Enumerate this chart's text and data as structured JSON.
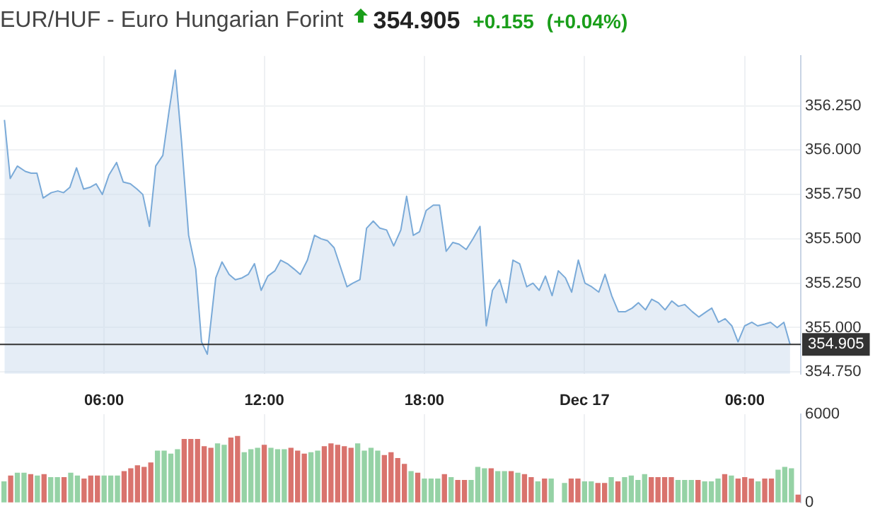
{
  "chart_data": [
    {
      "type": "area",
      "title": "EUR/HUF - Euro Hungarian Forint",
      "annotations": [
        "354.905",
        "+0.155",
        "(+0.04%)"
      ],
      "x": [
        "--12-16T02:16",
        "--12-16T02:29",
        "--12-16T02:45",
        "--12-16T03:03",
        "--12-16T03:16",
        "--12-16T03:29",
        "--12-16T03:43",
        "--12-16T04:01",
        "--12-16T04:16",
        "--12-16T04:29",
        "--12-16T04:43",
        "--12-16T04:58",
        "--12-16T05:14",
        "--12-16T05:28",
        "--12-16T05:42",
        "--12-16T05:56",
        "--12-16T06:11",
        "--12-16T06:28",
        "--12-16T06:43",
        "--12-16T06:59",
        "--12-16T07:14",
        "--12-16T07:27",
        "--12-16T07:42",
        "--12-16T07:56",
        "--12-16T08:12",
        "--12-16T08:26",
        "--12-16T08:40",
        "--12-16T08:54",
        "--12-16T09:10",
        "--12-16T09:26",
        "--12-16T09:39",
        "--12-16T09:52",
        "--12-16T10:11",
        "--12-16T10:25",
        "--12-16T10:41",
        "--12-16T10:55",
        "--12-16T11:10",
        "--12-16T11:24",
        "--12-16T11:38",
        "--12-16T11:53",
        "--12-16T12:08",
        "--12-16T12:24",
        "--12-16T12:37",
        "--12-16T12:52",
        "--12-16T13:07",
        "--12-16T13:21",
        "--12-16T13:37",
        "--12-16T13:53",
        "--12-16T14:08",
        "--12-16T14:22",
        "--12-16T14:37",
        "--12-16T15:06",
        "--12-16T15:19",
        "--12-16T15:35",
        "--12-16T15:50",
        "--12-16T16:05",
        "--12-16T16:20",
        "--12-16T16:35",
        "--12-16T16:51",
        "--12-16T17:07",
        "--12-16T17:20",
        "--12-16T17:35",
        "--12-16T17:49",
        "--12-16T18:04",
        "--12-16T18:20",
        "--12-16T18:34",
        "--12-16T18:49",
        "--12-16T19:04",
        "--12-16T19:18",
        "--12-16T19:34",
        "--12-16T19:49",
        "--12-16T20:05",
        "--12-16T20:19",
        "--12-16T20:33",
        "--12-16T20:49",
        "--12-16T21:04",
        "--12-16T21:19",
        "--12-16T21:34",
        "--12-16T21:50",
        "--12-16T22:04",
        "--12-16T22:18",
        "--12-16T22:32",
        "--12-16T22:47",
        "--12-16T23:01",
        "--12-16T23:17",
        "--12-16T23:31",
        "--12-16T23:46",
        "--12-17T00:01",
        "--12-17T00:16",
        "--12-17T00:32",
        "--12-17T00:46",
        "--12-17T01:01",
        "--12-17T01:16",
        "--12-17T01:32",
        "--12-17T01:47",
        "--12-17T02:01",
        "--12-17T02:17",
        "--12-17T02:31",
        "--12-17T02:46",
        "--12-17T03:01",
        "--12-17T03:16",
        "--12-17T03:31",
        "--12-17T03:45",
        "--12-17T04:02",
        "--12-17T04:17",
        "--12-17T04:34",
        "--12-17T04:46",
        "--12-17T05:01",
        "--12-17T05:16",
        "--12-17T05:31",
        "--12-17T05:45",
        "--12-17T06:00",
        "--12-17T06:16",
        "--12-17T06:29",
        "--12-17T06:45",
        "--12-17T06:58",
        "--12-17T07:13",
        "--12-17T07:28",
        "--12-17T07:42"
      ],
      "values": [
        356.17,
        355.84,
        355.91,
        355.88,
        355.87,
        355.87,
        355.73,
        355.76,
        355.77,
        355.76,
        355.79,
        355.9,
        355.78,
        355.79,
        355.81,
        355.75,
        355.86,
        355.93,
        355.82,
        355.81,
        355.78,
        355.75,
        355.57,
        355.91,
        355.97,
        356.22,
        356.45,
        356.05,
        355.52,
        355.33,
        354.92,
        354.85,
        355.28,
        355.37,
        355.3,
        355.27,
        355.28,
        355.3,
        355.36,
        355.21,
        355.29,
        355.32,
        355.38,
        355.36,
        355.33,
        355.3,
        355.38,
        355.52,
        355.5,
        355.49,
        355.45,
        355.23,
        355.25,
        355.27,
        355.56,
        355.6,
        355.56,
        355.55,
        355.46,
        355.55,
        355.74,
        355.52,
        355.54,
        355.66,
        355.69,
        355.69,
        355.43,
        355.48,
        355.47,
        355.44,
        355.5,
        355.57,
        355.01,
        355.21,
        355.27,
        355.14,
        355.38,
        355.36,
        355.23,
        355.25,
        355.21,
        355.29,
        355.18,
        355.32,
        355.28,
        355.2,
        355.38,
        355.25,
        355.23,
        355.2,
        355.3,
        355.18,
        355.09,
        355.09,
        355.11,
        355.14,
        355.1,
        355.16,
        355.14,
        355.1,
        355.15,
        355.12,
        355.13,
        355.09,
        355.06,
        355.09,
        355.11,
        355.03,
        355.05,
        355.01,
        354.92,
        355.01,
        355.03,
        355.01,
        355.02,
        355.03,
        355.0,
        355.03,
        354.905
      ],
      "color": "#7aaad8",
      "marker": "none",
      "xlim": [
        "--12-16T02:06",
        "--12-17T08:06"
      ],
      "xticks": [
        {
          "value": "--12-16T06:00",
          "label": null
        },
        {
          "value": "--12-16T12:00",
          "label": null
        },
        {
          "value": "--12-16T18:00",
          "label": null
        },
        {
          "value": "--12-17T00:00",
          "label": null
        },
        {
          "value": "--12-17T06:00",
          "label": null
        }
      ],
      "ylim": [
        354.74,
        356.53
      ],
      "yticks": [
        {
          "value": 354.75,
          "label": "354.750"
        },
        {
          "value": 355,
          "label": "355.000"
        },
        {
          "value": 355.25,
          "label": "355.250"
        },
        {
          "value": 355.5,
          "label": "355.500"
        },
        {
          "value": 355.75,
          "label": "355.750"
        },
        {
          "value": 356,
          "label": "356.000"
        },
        {
          "value": 356.25,
          "label": "356.250"
        }
      ],
      "ref_lines": [
        {
          "axis": "y",
          "value": 354.905,
          "label": "354.905",
          "color": "#333333"
        }
      ],
      "grid": true,
      "tick_labels": "y"
    },
    {
      "type": "bar",
      "x": [
        "--12-16T02:15",
        "--12-16T02:30",
        "--12-16T02:45",
        "--12-16T03:00",
        "--12-16T03:15",
        "--12-16T03:30",
        "--12-16T03:45",
        "--12-16T04:00",
        "--12-16T04:15",
        "--12-16T04:30",
        "--12-16T04:45",
        "--12-16T05:00",
        "--12-16T05:15",
        "--12-16T05:30",
        "--12-16T05:45",
        "--12-16T06:00",
        "--12-16T06:15",
        "--12-16T06:30",
        "--12-16T06:45",
        "--12-16T07:00",
        "--12-16T07:15",
        "--12-16T07:30",
        "--12-16T07:45",
        "--12-16T08:00",
        "--12-16T08:15",
        "--12-16T08:30",
        "--12-16T08:45",
        "--12-16T09:00",
        "--12-16T09:15",
        "--12-16T09:30",
        "--12-16T09:45",
        "--12-16T10:00",
        "--12-16T10:15",
        "--12-16T10:30",
        "--12-16T10:45",
        "--12-16T11:00",
        "--12-16T11:15",
        "--12-16T11:30",
        "--12-16T11:45",
        "--12-16T12:00",
        "--12-16T12:15",
        "--12-16T12:30",
        "--12-16T12:45",
        "--12-16T13:00",
        "--12-16T13:15",
        "--12-16T13:30",
        "--12-16T13:45",
        "--12-16T14:00",
        "--12-16T14:15",
        "--12-16T14:30",
        "--12-16T14:45",
        "--12-16T15:00",
        "--12-16T15:15",
        "--12-16T15:30",
        "--12-16T15:45",
        "--12-16T16:00",
        "--12-16T16:15",
        "--12-16T16:30",
        "--12-16T16:45",
        "--12-16T17:00",
        "--12-16T17:15",
        "--12-16T17:30",
        "--12-16T17:45",
        "--12-16T18:00",
        "--12-16T18:15",
        "--12-16T18:30",
        "--12-16T18:45",
        "--12-16T19:00",
        "--12-16T19:15",
        "--12-16T19:30",
        "--12-16T19:45",
        "--12-16T20:00",
        "--12-16T20:15",
        "--12-16T20:30",
        "--12-16T20:45",
        "--12-16T21:00",
        "--12-16T21:15",
        "--12-16T21:30",
        "--12-16T21:45",
        "--12-16T22:00",
        "--12-16T22:15",
        "--12-16T22:30",
        "--12-16T22:45",
        "--12-16T23:00",
        "--12-16T23:15",
        "--12-16T23:30",
        "--12-16T23:45",
        "--12-17T00:00",
        "--12-17T00:15",
        "--12-17T00:30",
        "--12-17T00:45",
        "--12-17T01:00",
        "--12-17T01:15",
        "--12-17T01:30",
        "--12-17T01:45",
        "--12-17T02:00",
        "--12-17T02:15",
        "--12-17T02:30",
        "--12-17T02:45",
        "--12-17T03:00",
        "--12-17T03:15",
        "--12-17T03:30",
        "--12-17T03:45",
        "--12-17T04:00",
        "--12-17T04:15",
        "--12-17T04:30",
        "--12-17T04:45",
        "--12-17T05:00",
        "--12-17T05:15",
        "--12-17T05:30",
        "--12-17T05:45",
        "--12-17T06:00",
        "--12-17T06:15",
        "--12-17T06:30",
        "--12-17T06:45",
        "--12-17T07:00",
        "--12-17T07:15",
        "--12-17T07:30",
        "--12-17T07:45",
        "--12-17T08:00"
      ],
      "values": [
        1400,
        1800,
        2000,
        2000,
        1900,
        1800,
        1900,
        1700,
        1700,
        1700,
        2000,
        1800,
        1600,
        1800,
        1800,
        1800,
        1800,
        1800,
        2100,
        2300,
        2500,
        2400,
        2700,
        3500,
        3500,
        3300,
        3600,
        4300,
        4300,
        4300,
        3800,
        3700,
        4000,
        3900,
        4400,
        4500,
        3400,
        3600,
        3700,
        3900,
        3700,
        3600,
        3600,
        3700,
        3500,
        3300,
        3400,
        3500,
        3800,
        4000,
        3900,
        3800,
        3700,
        4000,
        3500,
        3700,
        3500,
        3200,
        3400,
        3000,
        2600,
        2100,
        2000,
        1600,
        1600,
        1600,
        1900,
        1700,
        1500,
        1500,
        1500,
        2400,
        2300,
        2300,
        2100,
        2100,
        2100,
        2000,
        1900,
        1700,
        1400,
        1600,
        1600,
        null,
        1300,
        1600,
        1600,
        1400,
        1400,
        1300,
        1300,
        1700,
        1400,
        1700,
        1800,
        1500,
        1900,
        1700,
        1700,
        1700,
        1700,
        1500,
        1500,
        1500,
        1500,
        1400,
        1400,
        1600,
        1900,
        1800,
        1600,
        1700,
        1600,
        1400,
        1600,
        1600,
        2200,
        2400,
        2300,
        500
      ],
      "colors": [
        "#95d2a5",
        "#d9736d",
        "#95d2a5",
        "#95d2a5",
        "#d9736d",
        "#95d2a5",
        "#d9736d",
        "#95d2a5",
        "#95d2a5",
        "#d9736d",
        "#95d2a5",
        "#95d2a5",
        "#d9736d",
        "#d9736d",
        "#d9736d",
        "#95d2a5",
        "#95d2a5",
        "#95d2a5",
        "#d9736d",
        "#d9736d",
        "#d9736d",
        "#d9736d",
        "#d9736d",
        "#95d2a5",
        "#95d2a5",
        "#95d2a5",
        "#95d2a5",
        "#d9736d",
        "#d9736d",
        "#d9736d",
        "#d9736d",
        "#d9736d",
        "#95d2a5",
        "#95d2a5",
        "#d9736d",
        "#d9736d",
        "#95d2a5",
        "#95d2a5",
        "#95d2a5",
        "#d9736d",
        "#95d2a5",
        "#95d2a5",
        "#95d2a5",
        "#d9736d",
        "#d9736d",
        "#d9736d",
        "#95d2a5",
        "#95d2a5",
        "#d9736d",
        "#d9736d",
        "#d9736d",
        "#d9736d",
        "#d9736d",
        "#95d2a5",
        "#95d2a5",
        "#95d2a5",
        "#95d2a5",
        "#d9736d",
        "#d9736d",
        "#d9736d",
        "#d9736d",
        "#95d2a5",
        "#d9736d",
        "#95d2a5",
        "#95d2a5",
        "#95d2a5",
        "#d9736d",
        "#95d2a5",
        "#d9736d",
        "#d9736d",
        "#95d2a5",
        "#95d2a5",
        "#95d2a5",
        "#d9736d",
        "#95d2a5",
        "#95d2a5",
        "#d9736d",
        "#95d2a5",
        "#d9736d",
        "#d9736d",
        "#95d2a5",
        "#d9736d",
        "#95d2a5",
        "#95d2a5",
        "#95d2a5",
        "#d9736d",
        "#d9736d",
        "#95d2a5",
        "#95d2a5",
        "#d9736d",
        "#d9736d",
        "#95d2a5",
        "#d9736d",
        "#95d2a5",
        "#95d2a5",
        "#95d2a5",
        "#95d2a5",
        "#d9736d",
        "#d9736d",
        "#d9736d",
        "#d9736d",
        "#95d2a5",
        "#95d2a5",
        "#95d2a5",
        "#d9736d",
        "#95d2a5",
        "#95d2a5",
        "#95d2a5",
        "#d9736d",
        "#95d2a5",
        "#d9736d",
        "#d9736d",
        "#d9736d",
        "#95d2a5",
        "#d9736d",
        "#d9736d",
        "#95d2a5",
        "#95d2a5",
        "#95d2a5",
        "#d9736d"
      ],
      "xlim": [
        "--12-16T02:06",
        "--12-17T08:06"
      ],
      "xticks": [
        {
          "value": "--12-16T06:00",
          "label": "06:00"
        },
        {
          "value": "--12-16T12:00",
          "label": "12:00"
        },
        {
          "value": "--12-16T18:00",
          "label": "18:00"
        },
        {
          "value": "--12-17T00:00",
          "label": "Dec 17"
        },
        {
          "value": "--12-17T06:00",
          "label": "06:00"
        }
      ],
      "ylim": [
        0,
        6000
      ],
      "yticks": [
        0,
        6000
      ],
      "grid": "x"
    }
  ]
}
